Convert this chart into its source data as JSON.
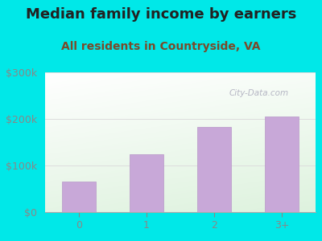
{
  "title": "Median family income by earners",
  "subtitle": "All residents in Countryside, VA",
  "categories": [
    "0",
    "1",
    "2",
    "3+"
  ],
  "values": [
    65000,
    125000,
    183000,
    205000
  ],
  "bar_color": "#c8a8d8",
  "bar_edge_color": "#b898c8",
  "outer_bg": "#00e8e8",
  "title_color": "#222222",
  "subtitle_color": "#7a4a2a",
  "tick_color": "#888888",
  "ytick_labels": [
    "$0",
    "$100k",
    "$200k",
    "$300k"
  ],
  "ytick_values": [
    0,
    100000,
    200000,
    300000
  ],
  "ylim": [
    0,
    300000
  ],
  "title_fontsize": 13,
  "subtitle_fontsize": 10,
  "tick_fontsize": 9,
  "watermark": "City-Data.com",
  "watermark_color": "#aaaabb",
  "grid_color": "#dddddd",
  "plot_bg_top": "#f8fff8",
  "plot_bg_bottom": "#e8f8e0"
}
